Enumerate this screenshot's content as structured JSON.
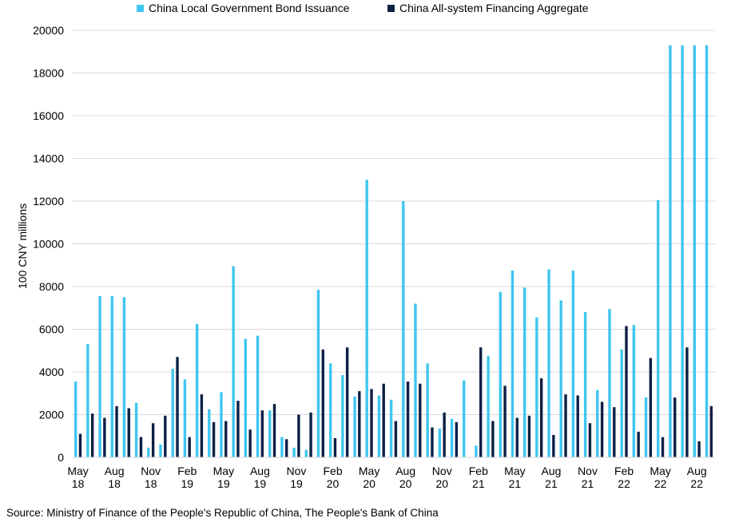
{
  "chart_data": {
    "type": "bar",
    "title": "",
    "xlabel": "",
    "ylabel": "100 CNY millions",
    "ylim": [
      0,
      20000
    ],
    "yticks": [
      0,
      2000,
      4000,
      6000,
      8000,
      10000,
      12000,
      14000,
      16000,
      18000,
      20000
    ],
    "grid": "horizontal",
    "legend_position": "top",
    "categories": [
      "May 18",
      "Jun 18",
      "Jul 18",
      "Aug 18",
      "Sep 18",
      "Oct 18",
      "Nov 18",
      "Dec 18",
      "Jan 19",
      "Feb 19",
      "Mar 19",
      "Apr 19",
      "May 19",
      "Jun 19",
      "Jul 19",
      "Aug 19",
      "Sep 19",
      "Oct 19",
      "Nov 19",
      "Dec 19",
      "Jan 20",
      "Feb 20",
      "Mar 20",
      "Apr 20",
      "May 20",
      "Jun 20",
      "Jul 20",
      "Aug 20",
      "Sep 20",
      "Oct 20",
      "Nov 20",
      "Dec 20",
      "Jan 21",
      "Feb 21",
      "Mar 21",
      "Apr 21",
      "May 21",
      "Jun 21",
      "Jul 21",
      "Aug 21",
      "Sep 21",
      "Oct 21",
      "Nov 21",
      "Dec 21",
      "Jan 22",
      "Feb 22",
      "Mar 22",
      "Apr 22",
      "May 22",
      "Jun 22",
      "Jul 22",
      "Aug 22",
      "Sep 22"
    ],
    "x_tick_labels": [
      {
        "line1": "May",
        "line2": "18"
      },
      {
        "line1": "Aug",
        "line2": "18"
      },
      {
        "line1": "Nov",
        "line2": "18"
      },
      {
        "line1": "Feb",
        "line2": "19"
      },
      {
        "line1": "May",
        "line2": "19"
      },
      {
        "line1": "Aug",
        "line2": "19"
      },
      {
        "line1": "Nov",
        "line2": "19"
      },
      {
        "line1": "Feb",
        "line2": "20"
      },
      {
        "line1": "May",
        "line2": "20"
      },
      {
        "line1": "Aug",
        "line2": "20"
      },
      {
        "line1": "Nov",
        "line2": "20"
      },
      {
        "line1": "Feb",
        "line2": "21"
      },
      {
        "line1": "May",
        "line2": "21"
      },
      {
        "line1": "Aug",
        "line2": "21"
      },
      {
        "line1": "Nov",
        "line2": "21"
      },
      {
        "line1": "Feb",
        "line2": "22"
      },
      {
        "line1": "May",
        "line2": "22"
      },
      {
        "line1": "Aug",
        "line2": "22"
      }
    ],
    "series": [
      {
        "name": "China Local Government Bond Issuance",
        "color": "#3fc6f0",
        "values": [
          3550,
          5300,
          7550,
          7550,
          7500,
          2550,
          450,
          600,
          4150,
          3650,
          6250,
          2250,
          3050,
          8950,
          5550,
          5700,
          2200,
          950,
          450,
          350,
          7850,
          4400,
          3850,
          2850,
          13000,
          2900,
          2700,
          12000,
          7200,
          4400,
          1350,
          1800,
          3600,
          550,
          4750,
          7750,
          8750,
          7950,
          6550,
          8800,
          7350,
          8750,
          6800,
          3150,
          6950,
          5050,
          6200,
          2800,
          12050,
          19300,
          19300,
          19300,
          19300
        ]
      },
      {
        "name": "China All-system Financing Aggregate",
        "color": "#0d1f45",
        "values": [
          1100,
          2050,
          1850,
          2400,
          2300,
          950,
          1600,
          1950,
          4700,
          950,
          2950,
          1650,
          1700,
          2650,
          1300,
          2200,
          2500,
          850,
          2000,
          2100,
          5050,
          900,
          5150,
          3100,
          3200,
          3450,
          1700,
          3550,
          3450,
          1400,
          2100,
          1650,
          0,
          5150,
          1700,
          3350,
          1850,
          1950,
          3700,
          1050,
          2950,
          2900,
          1600,
          2600,
          2350,
          6150,
          1200,
          4650,
          950,
          2800,
          5150,
          750,
          2400
        ]
      }
    ]
  },
  "legend": {
    "item1": "China Local Government Bond Issuance",
    "item2": "China All-system Financing Aggregate"
  },
  "axis": {
    "ylabel": "100 CNY millions"
  },
  "footer": {
    "source": "Source: Ministry of Finance of the People's Republic of China, The People's Bank of China"
  }
}
